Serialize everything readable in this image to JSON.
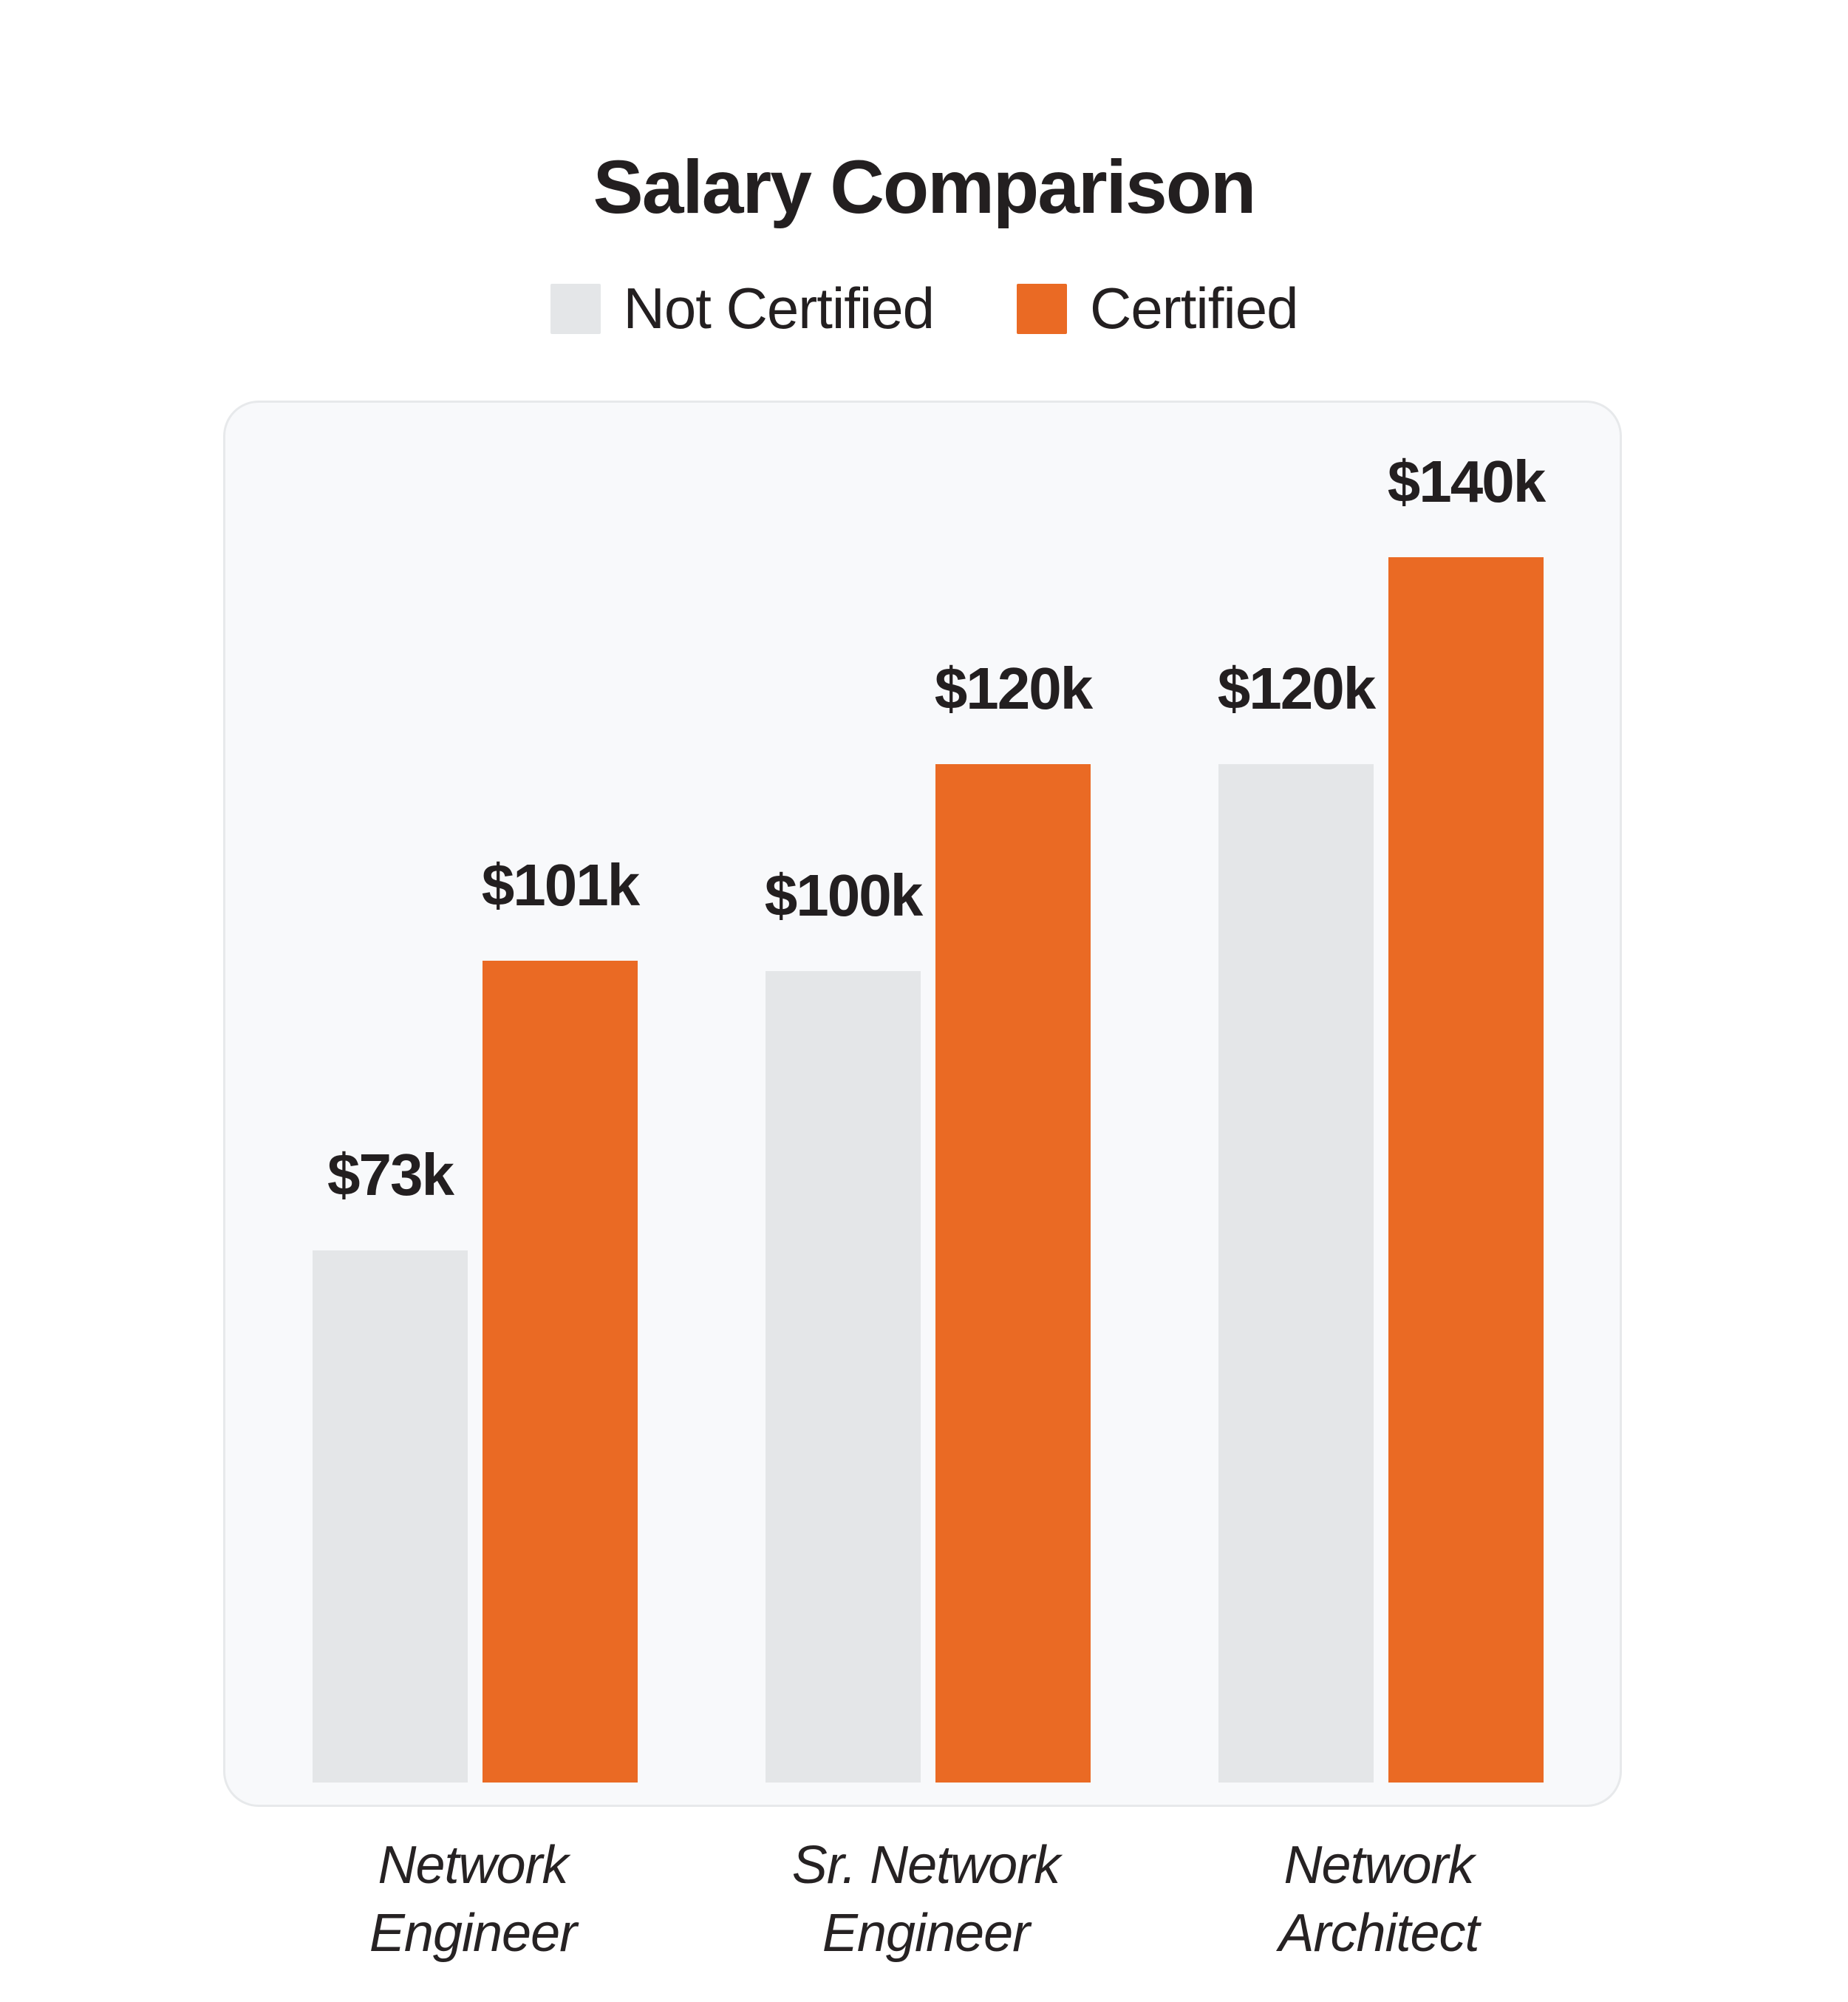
{
  "header": {
    "title": "Salary Comparison"
  },
  "legend": {
    "items": [
      {
        "label": "Not Certified",
        "color": "#E4E6E8"
      },
      {
        "label": "Certified",
        "color": "#EA6A24"
      }
    ]
  },
  "colors": {
    "background": "#FFFFFF",
    "panel_background": "#F8F9FB",
    "panel_border": "#E7E9EB",
    "text": "#231F20",
    "not_certified_bar": "#E4E6E8",
    "certified_bar": "#EA6A24"
  },
  "chart_data": {
    "type": "bar",
    "title": "Salary Comparison",
    "categories": [
      "Network Engineer",
      "Sr. Network Engineer",
      "Network Architect"
    ],
    "category_label_lines": [
      [
        "Network",
        "Engineer"
      ],
      [
        "Sr. Network",
        "Engineer"
      ],
      [
        "Network",
        "Architect"
      ]
    ],
    "series": [
      {
        "name": "Not Certified",
        "color": "#E4E6E8",
        "values": [
          73,
          100,
          120
        ],
        "value_labels": [
          "$73k",
          "$100k",
          "$120k"
        ]
      },
      {
        "name": "Certified",
        "color": "#EA6A24",
        "values": [
          101,
          120,
          140
        ],
        "value_labels": [
          "$101k",
          "$120k",
          "$140k"
        ]
      }
    ],
    "value_unit": "USD thousands per year",
    "bar_labels_position": "above",
    "grid": false,
    "axes_hidden": true,
    "legend_position": "top"
  }
}
